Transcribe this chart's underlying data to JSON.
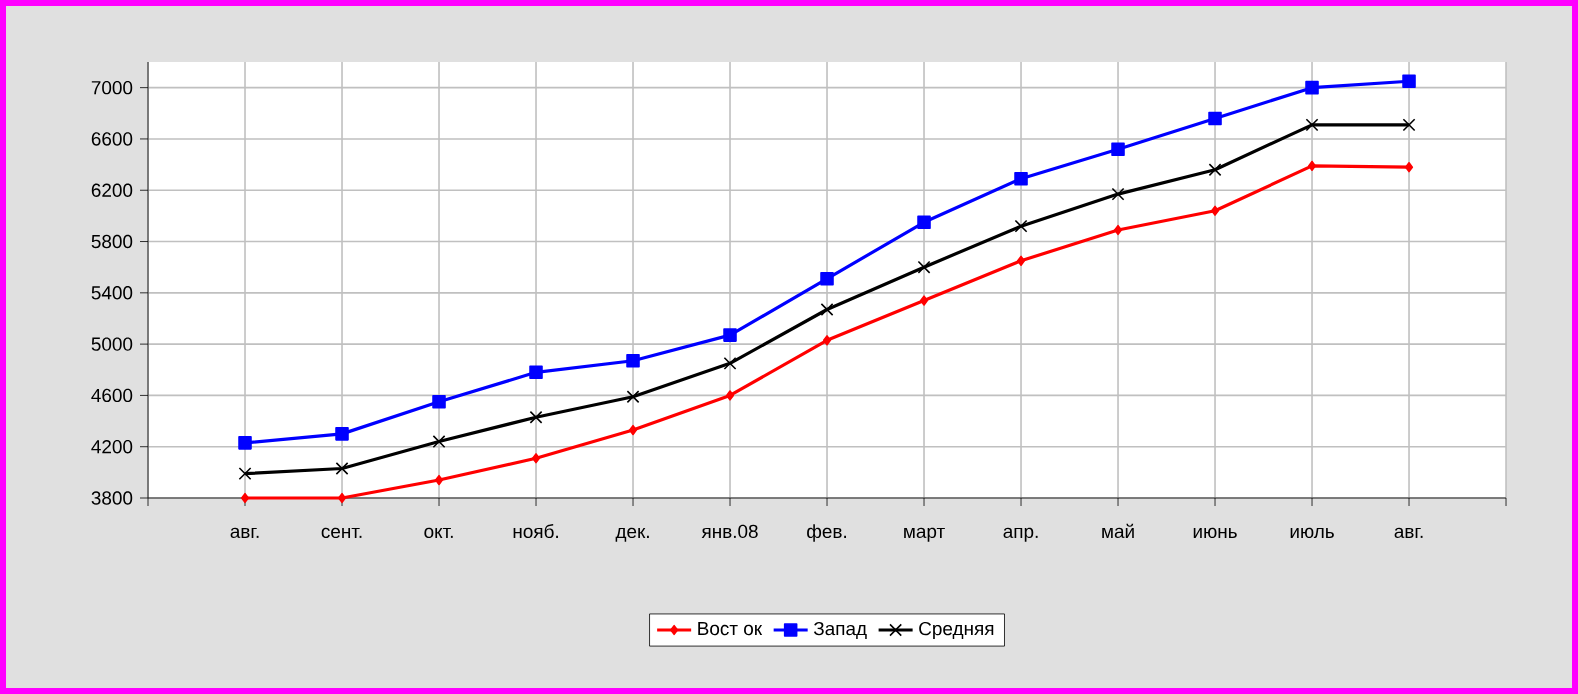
{
  "chart_data": {
    "type": "line",
    "categories": [
      "авг.",
      "сент.",
      "окт.",
      "нояб.",
      "дек.",
      "янв.08",
      "фев.",
      "март",
      "апр.",
      "май",
      "июнь",
      "июль",
      "авг."
    ],
    "series": [
      {
        "name": "Вост ок",
        "color": "#ff0000",
        "marker": "diamond",
        "values": [
          3800,
          3800,
          3940,
          4110,
          4330,
          4600,
          5030,
          5340,
          5650,
          5890,
          6040,
          6390,
          6380
        ]
      },
      {
        "name": "Запад",
        "color": "#0000ff",
        "marker": "square",
        "values": [
          4230,
          4300,
          4550,
          4780,
          4870,
          5070,
          5510,
          5950,
          6290,
          6520,
          6760,
          7000,
          7050
        ]
      },
      {
        "name": "Средняя",
        "color": "#000000",
        "marker": "cross",
        "values": [
          3990,
          4030,
          4240,
          4430,
          4590,
          4850,
          5270,
          5600,
          5920,
          6170,
          6360,
          6710,
          6710
        ]
      }
    ],
    "ylim": [
      3800,
      7200
    ],
    "yticks": [
      3800,
      4200,
      4600,
      5000,
      5400,
      5800,
      6200,
      6600,
      7000
    ],
    "grid": true,
    "legend": "bottom",
    "line_style": "solid"
  }
}
